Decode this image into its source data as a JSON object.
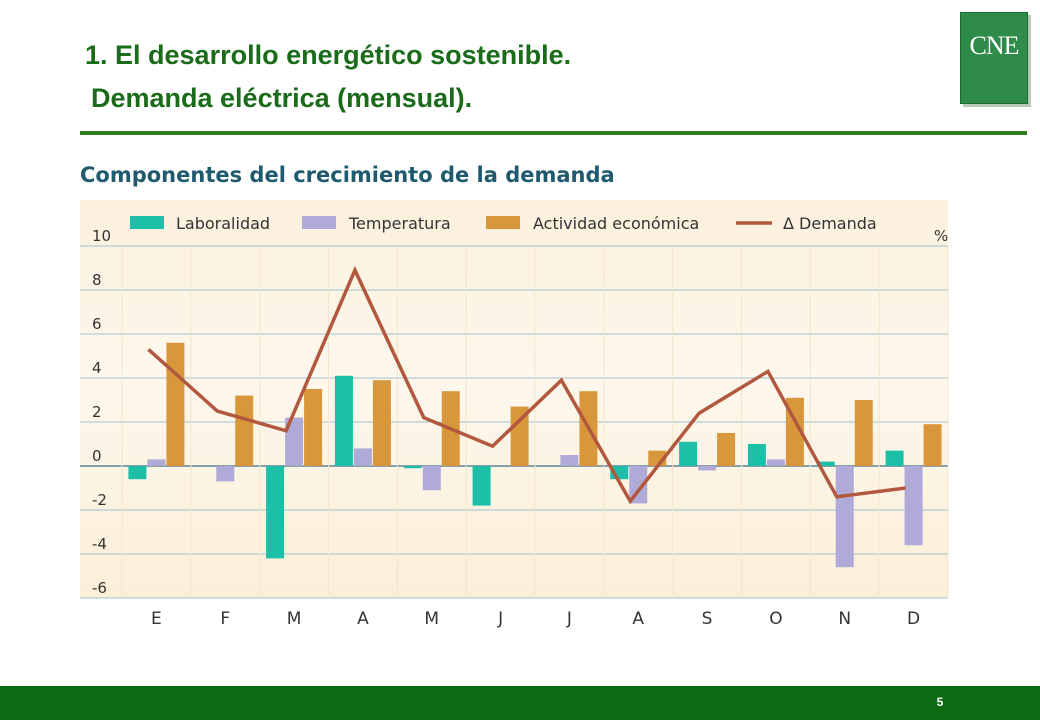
{
  "slide": {
    "title_line1": "1. El desarrollo energético sostenible.",
    "title_line2": "Demanda eléctrica (mensual).",
    "logo_text": "CNE",
    "page_number": "5"
  },
  "colors": {
    "title": "#1a6b1a",
    "rule": "#2e7d1e",
    "footer": "#0d6a12",
    "heading": "#1f5a6e",
    "laboralidad": "#1dbfa8",
    "temperatura": "#afaad8",
    "actividad": "#d9973b",
    "demanda": "#b2583f",
    "grid": "#7fb0c8"
  },
  "chart_data": {
    "type": "bar",
    "title": "Componentes del crecimiento de la demanda",
    "unit": "%",
    "categories": [
      "E",
      "F",
      "M",
      "A",
      "M",
      "J",
      "J",
      "A",
      "S",
      "O",
      "N",
      "D"
    ],
    "ylim": [
      -6,
      10
    ],
    "yticks": [
      10,
      8,
      6,
      4,
      2,
      0,
      -2,
      -4,
      -6
    ],
    "grid": true,
    "legend_position": "top",
    "series": [
      {
        "name": "Laboralidad",
        "kind": "bar",
        "color": "#1dbfa8",
        "values": [
          -0.6,
          0,
          -4.2,
          4.1,
          -0.1,
          -1.8,
          0,
          -0.6,
          1.1,
          1.0,
          0.2,
          0.7
        ]
      },
      {
        "name": "Temperatura",
        "kind": "bar",
        "color": "#afaad8",
        "values": [
          0.3,
          -0.7,
          2.2,
          0.8,
          -1.1,
          0,
          0.5,
          -1.7,
          -0.2,
          0.3,
          -4.6,
          -3.6
        ]
      },
      {
        "name": "Actividad económica",
        "kind": "bar",
        "color": "#d9973b",
        "values": [
          5.6,
          3.2,
          3.5,
          3.9,
          3.4,
          2.7,
          3.4,
          0.7,
          1.5,
          3.1,
          3.0,
          1.9
        ]
      },
      {
        "name": "Δ Demanda",
        "kind": "line",
        "color": "#b2583f",
        "values": [
          5.3,
          2.5,
          1.6,
          8.9,
          2.2,
          0.9,
          3.9,
          -1.6,
          2.4,
          4.3,
          -1.4,
          -1.0
        ]
      }
    ]
  }
}
